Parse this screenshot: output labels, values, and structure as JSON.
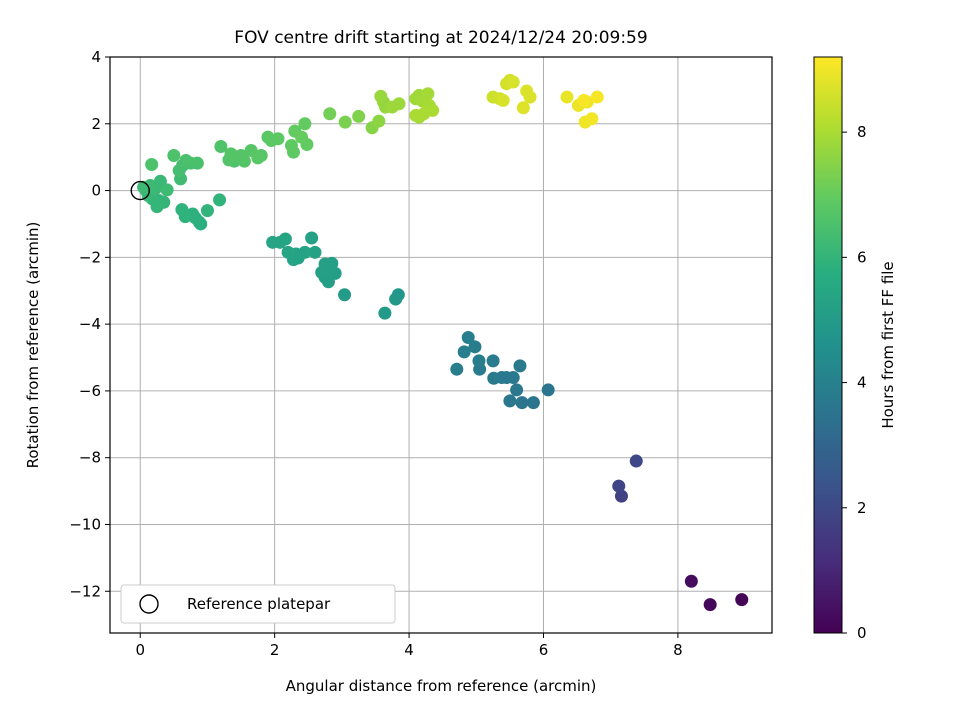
{
  "chart_data": {
    "type": "scatter",
    "title": "FOV centre drift starting at 2024/12/24 20:09:59",
    "xlabel": "Angular distance from reference (arcmin)",
    "ylabel": "Rotation from reference (arcmin)",
    "xlim": [
      -0.45,
      9.4
    ],
    "ylim": [
      -13.25,
      4.0
    ],
    "xticks": [
      0,
      2,
      4,
      6,
      8
    ],
    "yticks": [
      -12,
      -10,
      -8,
      -6,
      -4,
      -2,
      0,
      2,
      4
    ],
    "grid": true,
    "colormap": "viridis",
    "colorbar": {
      "label": "Hours from first FF file",
      "range": [
        0,
        9.2
      ],
      "ticks": [
        0,
        2,
        4,
        6,
        8
      ]
    },
    "legend": {
      "position": "lower-left",
      "entries": [
        "Reference platepar"
      ]
    },
    "reference_point": {
      "x": 0,
      "y": 0
    },
    "series": [
      {
        "x": [
          8.95,
          8.48,
          8.2,
          7.16,
          7.12,
          7.38,
          6.07,
          5.85,
          5.68,
          5.6,
          5.5,
          5.55,
          5.45,
          5.38,
          5.26,
          5.65,
          5.05,
          5.25,
          5.04,
          4.98,
          4.82,
          4.71,
          4.88,
          3.84,
          3.8,
          3.64,
          3.04,
          2.8,
          2.9,
          2.75,
          2.85,
          2.7,
          2.82,
          2.75,
          2.6,
          2.55,
          2.45,
          2.35,
          2.28,
          2.32,
          2.2,
          2.08,
          1.97,
          2.16,
          0.9,
          0.88,
          0.82,
          0.78,
          0.67,
          0.62,
          1.0,
          1.18,
          0.35,
          0.28,
          0.25,
          0.18,
          0.12,
          0.08,
          0.22,
          0.3,
          0.15,
          0.05,
          0.4,
          0.6,
          0.63,
          0.58,
          0.75,
          0.85,
          0.68,
          0.5,
          0.17,
          1.2,
          1.4,
          1.32,
          1.45,
          1.35,
          1.55,
          1.5,
          1.65,
          1.8,
          1.75,
          1.9,
          2.05,
          1.95,
          2.25,
          2.28,
          2.48,
          2.45,
          2.3,
          2.4,
          2.82,
          3.05,
          3.25,
          3.45,
          3.55,
          3.65,
          3.62,
          3.58,
          3.75,
          3.85,
          4.1,
          4.15,
          4.2,
          4.28,
          4.3,
          4.15,
          4.22,
          4.35,
          4.1,
          5.25,
          5.35,
          5.45,
          5.5,
          5.55,
          5.4,
          5.75,
          5.8,
          5.7,
          6.35,
          6.52,
          6.62,
          6.65,
          6.72,
          6.8,
          6.6
        ],
        "y": [
          -12.25,
          -12.4,
          -11.7,
          -9.15,
          -8.85,
          -8.1,
          -5.97,
          -6.35,
          -6.35,
          -5.97,
          -6.3,
          -5.6,
          -5.6,
          -5.6,
          -5.62,
          -5.25,
          -5.35,
          -5.1,
          -5.1,
          -4.68,
          -4.83,
          -5.35,
          -4.4,
          -3.12,
          -3.25,
          -3.67,
          -3.12,
          -2.73,
          -2.48,
          -2.6,
          -2.18,
          -2.45,
          -2.33,
          -2.2,
          -1.85,
          -1.42,
          -1.85,
          -2.02,
          -2.07,
          -1.9,
          -1.85,
          -1.55,
          -1.55,
          -1.45,
          -1.0,
          -0.95,
          -0.82,
          -0.7,
          -0.78,
          -0.57,
          -0.6,
          -0.28,
          -0.35,
          -0.3,
          -0.48,
          -0.25,
          -0.15,
          0.02,
          0.05,
          0.28,
          0.15,
          0.1,
          0.02,
          0.35,
          0.75,
          0.6,
          0.82,
          0.82,
          0.9,
          1.05,
          0.78,
          1.32,
          0.88,
          0.92,
          1.0,
          1.1,
          0.88,
          1.05,
          1.2,
          1.05,
          0.98,
          1.6,
          1.55,
          1.5,
          1.35,
          1.15,
          1.38,
          2.0,
          1.78,
          1.6,
          2.3,
          2.05,
          2.22,
          1.88,
          2.08,
          2.5,
          2.65,
          2.82,
          2.5,
          2.6,
          2.75,
          2.85,
          2.68,
          2.9,
          2.55,
          2.2,
          2.3,
          2.4,
          2.25,
          2.8,
          2.75,
          3.2,
          3.3,
          3.25,
          2.7,
          2.98,
          2.8,
          2.48,
          2.8,
          2.55,
          2.05,
          2.65,
          2.15,
          2.8,
          2.7
        ],
        "hours": [
          0.1,
          0.2,
          0.3,
          1.8,
          1.9,
          2.0,
          3.6,
          3.6,
          3.6,
          3.65,
          3.65,
          3.7,
          3.7,
          3.7,
          3.75,
          3.75,
          3.8,
          3.8,
          3.85,
          3.85,
          3.9,
          3.9,
          3.95,
          4.8,
          4.85,
          4.9,
          5.0,
          5.1,
          5.1,
          5.15,
          5.15,
          5.2,
          5.2,
          5.2,
          5.25,
          5.25,
          5.3,
          5.3,
          5.3,
          5.3,
          5.35,
          5.35,
          5.35,
          5.4,
          5.8,
          5.8,
          5.85,
          5.85,
          5.9,
          5.9,
          5.95,
          5.95,
          6.0,
          6.0,
          6.05,
          6.05,
          6.1,
          6.1,
          6.15,
          6.15,
          6.2,
          6.2,
          6.25,
          6.3,
          6.35,
          6.4,
          6.45,
          6.5,
          6.5,
          6.55,
          6.55,
          6.6,
          6.6,
          6.65,
          6.65,
          6.7,
          6.7,
          6.7,
          6.75,
          6.75,
          6.8,
          6.8,
          6.85,
          6.85,
          6.9,
          6.9,
          6.95,
          6.95,
          6.95,
          7.0,
          7.2,
          7.3,
          7.4,
          7.5,
          7.6,
          7.7,
          7.7,
          7.75,
          7.8,
          7.8,
          7.85,
          7.85,
          7.9,
          7.9,
          7.95,
          7.95,
          8.0,
          8.0,
          8.0,
          8.5,
          8.55,
          8.6,
          8.6,
          8.65,
          8.65,
          8.7,
          8.7,
          8.75,
          8.9,
          8.95,
          9.0,
          9.0,
          9.05,
          9.1,
          9.1
        ]
      }
    ]
  }
}
